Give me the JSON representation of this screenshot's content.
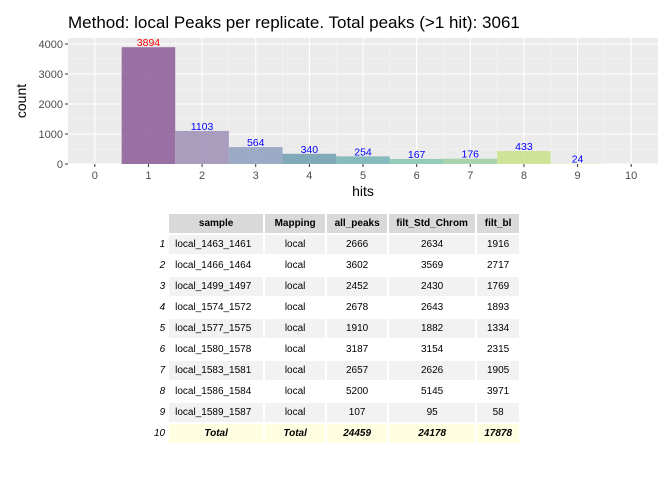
{
  "chart_data": {
    "type": "bar",
    "title": "Method: local Peaks per replicate. Total peaks (>1 hit): 3061",
    "xlabel": "hits",
    "ylabel": "count",
    "x": [
      1,
      2,
      3,
      4,
      5,
      6,
      7,
      8,
      9
    ],
    "values": [
      3894,
      1103,
      564,
      340,
      254,
      167,
      176,
      433,
      24
    ],
    "data_labels": [
      "3894",
      "1103",
      "564",
      "340",
      "254",
      "167",
      "176",
      "433",
      "24"
    ],
    "xlim": [
      -0.5,
      10.5
    ],
    "ylim": [
      0,
      4200
    ],
    "xticks": [
      0,
      1,
      2,
      3,
      4,
      5,
      6,
      7,
      8,
      9,
      10
    ],
    "yticks": [
      0,
      1000,
      2000,
      3000,
      4000
    ],
    "grid": true,
    "colors": [
      "#8a5a96",
      "#9d8fb6",
      "#8d9fbe",
      "#6f9db0",
      "#74b2b4",
      "#86c4b0",
      "#9ccfa2",
      "#c9e08a",
      "#f5f2c8"
    ],
    "label_colors": [
      "#ff0000",
      "#0000ff",
      "#0000ff",
      "#0000ff",
      "#0000ff",
      "#0000ff",
      "#0000ff",
      "#0000ff",
      "#0000ff"
    ]
  },
  "table": {
    "headers": [
      "sample",
      "Mapping",
      "all_peaks",
      "filt_Std_Chrom",
      "filt_bl"
    ],
    "rows": [
      {
        "idx": "1",
        "sample": "local_1463_1461",
        "mapping": "local",
        "all_peaks": "2666",
        "filt_std": "2634",
        "filt_bl": "1916"
      },
      {
        "idx": "2",
        "sample": "local_1466_1464",
        "mapping": "local",
        "all_peaks": "3602",
        "filt_std": "3569",
        "filt_bl": "2717"
      },
      {
        "idx": "3",
        "sample": "local_1499_1497",
        "mapping": "local",
        "all_peaks": "2452",
        "filt_std": "2430",
        "filt_bl": "1769"
      },
      {
        "idx": "4",
        "sample": "local_1574_1572",
        "mapping": "local",
        "all_peaks": "2678",
        "filt_std": "2643",
        "filt_bl": "1893"
      },
      {
        "idx": "5",
        "sample": "local_1577_1575",
        "mapping": "local",
        "all_peaks": "1910",
        "filt_std": "1882",
        "filt_bl": "1334"
      },
      {
        "idx": "6",
        "sample": "local_1580_1578",
        "mapping": "local",
        "all_peaks": "3187",
        "filt_std": "3154",
        "filt_bl": "2315"
      },
      {
        "idx": "7",
        "sample": "local_1583_1581",
        "mapping": "local",
        "all_peaks": "2657",
        "filt_std": "2626",
        "filt_bl": "1905"
      },
      {
        "idx": "8",
        "sample": "local_1586_1584",
        "mapping": "local",
        "all_peaks": "5200",
        "filt_std": "5145",
        "filt_bl": "3971"
      },
      {
        "idx": "9",
        "sample": "local_1589_1587",
        "mapping": "local",
        "all_peaks": "107",
        "filt_std": "95",
        "filt_bl": "58"
      },
      {
        "idx": "10",
        "sample": "Total",
        "mapping": "Total",
        "all_peaks": "24459",
        "filt_std": "24178",
        "filt_bl": "17878"
      }
    ]
  }
}
